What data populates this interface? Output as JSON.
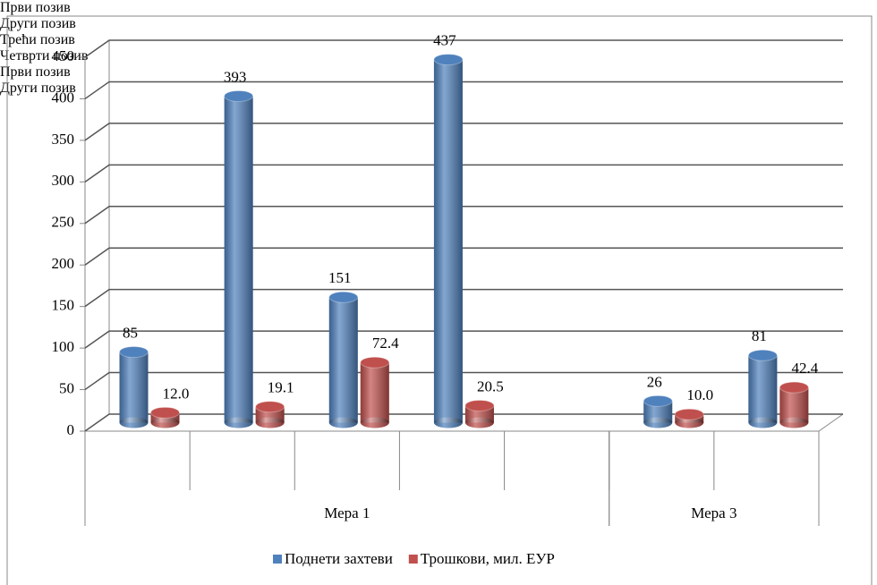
{
  "chart_data": {
    "type": "bar3d",
    "categories": [
      "Први позив",
      "Други позив",
      "Трећи позив",
      "Четврти позив",
      null,
      "Први позив",
      "Други позив"
    ],
    "groups": [
      {
        "name": "Мера 1",
        "count": 5
      },
      {
        "name": "Мера 3",
        "count": 2
      }
    ],
    "series": [
      {
        "name": "Поднети захтеви",
        "color": "#4f81bd",
        "values": [
          85,
          393,
          151,
          437,
          null,
          26,
          81
        ]
      },
      {
        "name": "Трошкови, мил. ЕУР",
        "color": "#c0504d",
        "values": [
          12.0,
          19.1,
          72.4,
          20.5,
          null,
          10.0,
          42.4
        ],
        "value_labels": [
          "12.0",
          "19.1",
          "72.4",
          "20.5",
          null,
          "10.0",
          "42.4"
        ]
      }
    ],
    "ylim": [
      0,
      450
    ],
    "yticks": [
      0,
      50,
      100,
      150,
      200,
      250,
      300,
      350,
      400,
      450
    ],
    "grid": true,
    "legend": "bottom"
  }
}
